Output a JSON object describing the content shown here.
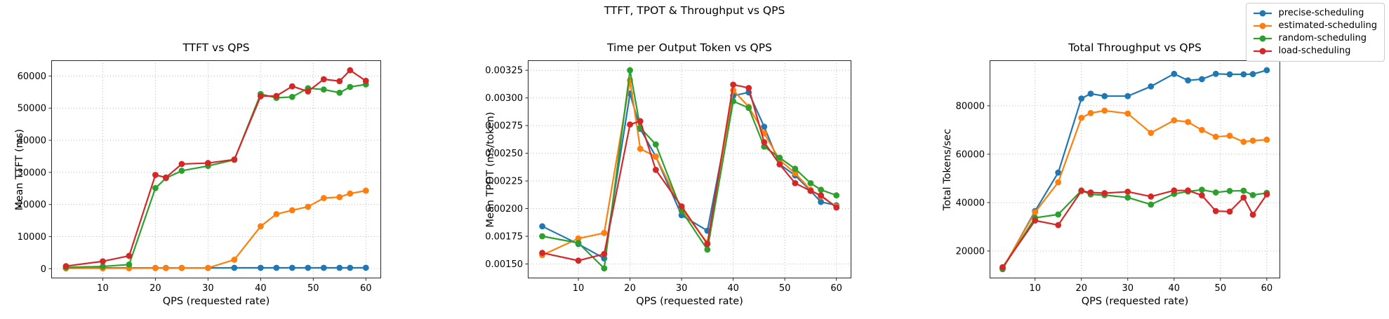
{
  "figure": {
    "suptitle": "TTFT, TPOT & Throughput vs QPS",
    "background_color": "#ffffff",
    "grid_color": "#b5b5b5",
    "spine_color": "#262626"
  },
  "legend": {
    "position": "figure-top-right",
    "items": [
      {
        "label": "precise-scheduling",
        "color": "#1f77b4"
      },
      {
        "label": "estimated-scheduling",
        "color": "#ff7f0e"
      },
      {
        "label": "random-scheduling",
        "color": "#2ca02c"
      },
      {
        "label": "load-scheduling",
        "color": "#d62728"
      }
    ]
  },
  "chart_data": [
    {
      "type": "line",
      "title": "TTFT vs QPS",
      "xlabel": "QPS (requested rate)",
      "ylabel": "Mean TTFT (ms)",
      "grid": true,
      "x": [
        3,
        10,
        15,
        20,
        22,
        25,
        30,
        35,
        40,
        43,
        46,
        49,
        52,
        55,
        57,
        60
      ],
      "xlim": [
        0.2,
        62.9
      ],
      "ylim": [
        -3000,
        64900
      ],
      "xticks": [
        10,
        20,
        30,
        40,
        50,
        60
      ],
      "xtick_labels": [
        "10",
        "20",
        "30",
        "40",
        "50",
        "60"
      ],
      "yticks": [
        0,
        10000,
        20000,
        30000,
        40000,
        50000,
        60000
      ],
      "ytick_labels": [
        "0",
        "10000",
        "20000",
        "30000",
        "40000",
        "50000",
        "60000"
      ],
      "series": [
        {
          "name": "precise-scheduling",
          "color": "#1f77b4",
          "values": [
            250,
            250,
            250,
            250,
            250,
            250,
            250,
            280,
            280,
            280,
            280,
            280,
            280,
            280,
            280,
            300
          ]
        },
        {
          "name": "estimated-scheduling",
          "color": "#ff7f0e",
          "values": [
            100,
            130,
            150,
            200,
            200,
            220,
            250,
            2800,
            13200,
            17000,
            18200,
            19300,
            22000,
            22300,
            23400,
            24300
          ]
        },
        {
          "name": "random-scheduling",
          "color": "#2ca02c",
          "values": [
            400,
            700,
            1300,
            25100,
            28200,
            30500,
            32000,
            33900,
            54400,
            53200,
            53500,
            56200,
            55800,
            54800,
            56600,
            57400
          ]
        },
        {
          "name": "load-scheduling",
          "color": "#d62728",
          "values": [
            800,
            2300,
            4000,
            29200,
            28400,
            32600,
            32900,
            34000,
            53700,
            53800,
            56800,
            55200,
            59000,
            58400,
            61800,
            58500
          ]
        }
      ]
    },
    {
      "type": "line",
      "title": "Time per Output Token vs QPS",
      "xlabel": "QPS (requested rate)",
      "ylabel": "Mean TPOT (ms/token)",
      "grid": true,
      "x": [
        3,
        10,
        15,
        20,
        22,
        25,
        30,
        35,
        40,
        43,
        46,
        49,
        52,
        55,
        57,
        60
      ],
      "xlim": [
        0.2,
        62.9
      ],
      "ylim": [
        0.00137,
        0.00334
      ],
      "xticks": [
        10,
        20,
        30,
        40,
        50,
        60
      ],
      "xtick_labels": [
        "10",
        "20",
        "30",
        "40",
        "50",
        "60"
      ],
      "yticks": [
        0.0015,
        0.00175,
        0.002,
        0.00225,
        0.0025,
        0.00275,
        0.003,
        0.00325
      ],
      "ytick_labels": [
        "0.00150",
        "0.00175",
        "0.00200",
        "0.00225",
        "0.00250",
        "0.00275",
        "0.00300",
        "0.00325"
      ],
      "series": [
        {
          "name": "precise-scheduling",
          "color": "#1f77b4",
          "values": [
            0.00184,
            0.00168,
            0.00155,
            0.00304,
            0.00272,
            0.00247,
            0.00194,
            0.0018,
            0.00302,
            0.00305,
            0.00274,
            0.0024,
            0.0023,
            0.00216,
            0.00206,
            0.00203
          ]
        },
        {
          "name": "estimated-scheduling",
          "color": "#ff7f0e",
          "values": [
            0.00158,
            0.00173,
            0.00178,
            0.00316,
            0.00254,
            0.00247,
            0.002,
            0.00169,
            0.00307,
            0.00292,
            0.00268,
            0.00244,
            0.00232,
            0.00217,
            0.00211,
            0.00202
          ]
        },
        {
          "name": "random-scheduling",
          "color": "#2ca02c",
          "values": [
            0.00175,
            0.00169,
            0.00146,
            0.00325,
            0.00273,
            0.00258,
            0.00198,
            0.00163,
            0.00297,
            0.00291,
            0.00256,
            0.00246,
            0.00236,
            0.00223,
            0.00217,
            0.00212
          ]
        },
        {
          "name": "load-scheduling",
          "color": "#d62728",
          "values": [
            0.0016,
            0.00153,
            0.00159,
            0.00276,
            0.00279,
            0.00235,
            0.00202,
            0.00168,
            0.00312,
            0.00309,
            0.0026,
            0.0024,
            0.00223,
            0.00216,
            0.00212,
            0.00201
          ]
        }
      ]
    },
    {
      "type": "line",
      "title": "Total Throughput vs QPS",
      "xlabel": "QPS (requested rate)",
      "ylabel": "Total Tokens/sec",
      "grid": true,
      "x": [
        3,
        10,
        15,
        20,
        22,
        25,
        30,
        35,
        40,
        43,
        46,
        49,
        52,
        55,
        57,
        60
      ],
      "xlim": [
        0.2,
        62.9
      ],
      "ylim": [
        8700,
        98800
      ],
      "xticks": [
        10,
        20,
        30,
        40,
        50,
        60
      ],
      "xtick_labels": [
        "10",
        "20",
        "30",
        "40",
        "50",
        "60"
      ],
      "yticks": [
        20000,
        40000,
        60000,
        80000
      ],
      "ytick_labels": [
        "20000",
        "40000",
        "60000",
        "80000"
      ],
      "series": [
        {
          "name": "precise-scheduling",
          "color": "#1f77b4",
          "values": [
            12500,
            36500,
            52400,
            83000,
            85000,
            84000,
            84000,
            88000,
            93200,
            90500,
            91000,
            93200,
            93000,
            93000,
            93100,
            94700
          ]
        },
        {
          "name": "estimated-scheduling",
          "color": "#ff7f0e",
          "values": [
            12800,
            36000,
            48400,
            75000,
            77000,
            78000,
            76800,
            68800,
            74000,
            73300,
            70000,
            67200,
            67600,
            65100,
            65600,
            66000
          ]
        },
        {
          "name": "random-scheduling",
          "color": "#2ca02c",
          "values": [
            12800,
            33700,
            35100,
            45000,
            43400,
            43100,
            42100,
            39200,
            43600,
            44600,
            45300,
            44200,
            44800,
            44900,
            43100,
            44000
          ]
        },
        {
          "name": "load-scheduling",
          "color": "#d62728",
          "values": [
            13300,
            32600,
            30700,
            44800,
            44200,
            43900,
            44500,
            42500,
            45000,
            45000,
            43000,
            36500,
            36300,
            42100,
            35000,
            43400
          ]
        }
      ]
    }
  ]
}
